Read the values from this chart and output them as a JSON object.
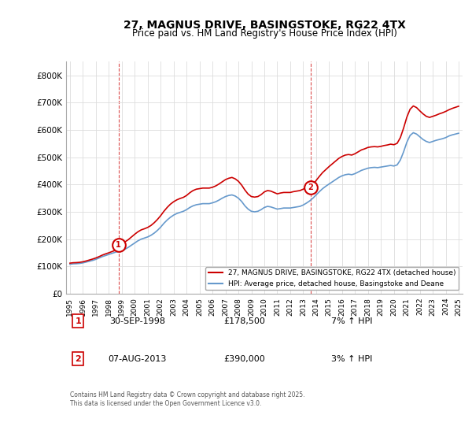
{
  "title": "27, MAGNUS DRIVE, BASINGSTOKE, RG22 4TX",
  "subtitle": "Price paid vs. HM Land Registry's House Price Index (HPI)",
  "legend_line1": "27, MAGNUS DRIVE, BASINGSTOKE, RG22 4TX (detached house)",
  "legend_line2": "HPI: Average price, detached house, Basingstoke and Deane",
  "footnote": "Contains HM Land Registry data © Crown copyright and database right 2025.\nThis data is licensed under the Open Government Licence v3.0.",
  "sale1_date": "30-SEP-1998",
  "sale1_price": "£178,500",
  "sale1_hpi": "7% ↑ HPI",
  "sale2_date": "07-AUG-2013",
  "sale2_price": "£390,000",
  "sale2_hpi": "3% ↑ HPI",
  "hpi_color": "#6699cc",
  "property_color": "#cc0000",
  "sale_marker_color": "#cc0000",
  "vline_color": "#cc0000",
  "background_color": "#ffffff",
  "grid_color": "#dddddd",
  "ylim": [
    0,
    850000
  ],
  "yticks": [
    0,
    100000,
    200000,
    300000,
    400000,
    500000,
    600000,
    700000,
    800000
  ],
  "ytick_labels": [
    "£0",
    "£100K",
    "£200K",
    "£300K",
    "£400K",
    "£500K",
    "£600K",
    "£700K",
    "£800K"
  ],
  "xmin_year": 1995,
  "xmax_year": 2025,
  "xticks": [
    1995,
    1996,
    1997,
    1998,
    1999,
    2000,
    2001,
    2002,
    2003,
    2004,
    2005,
    2006,
    2007,
    2008,
    2009,
    2010,
    2011,
    2012,
    2013,
    2014,
    2015,
    2016,
    2017,
    2018,
    2019,
    2020,
    2021,
    2022,
    2023,
    2024,
    2025
  ],
  "sale1_x": 1998.75,
  "sale1_y": 178500,
  "sale2_x": 2013.58,
  "sale2_y": 390000,
  "hpi_years": [
    1995.0,
    1995.25,
    1995.5,
    1995.75,
    1996.0,
    1996.25,
    1996.5,
    1996.75,
    1997.0,
    1997.25,
    1997.5,
    1997.75,
    1998.0,
    1998.25,
    1998.5,
    1998.75,
    1999.0,
    1999.25,
    1999.5,
    1999.75,
    2000.0,
    2000.25,
    2000.5,
    2000.75,
    2001.0,
    2001.25,
    2001.5,
    2001.75,
    2002.0,
    2002.25,
    2002.5,
    2002.75,
    2003.0,
    2003.25,
    2003.5,
    2003.75,
    2004.0,
    2004.25,
    2004.5,
    2004.75,
    2005.0,
    2005.25,
    2005.5,
    2005.75,
    2006.0,
    2006.25,
    2006.5,
    2006.75,
    2007.0,
    2007.25,
    2007.5,
    2007.75,
    2008.0,
    2008.25,
    2008.5,
    2008.75,
    2009.0,
    2009.25,
    2009.5,
    2009.75,
    2010.0,
    2010.25,
    2010.5,
    2010.75,
    2011.0,
    2011.25,
    2011.5,
    2011.75,
    2012.0,
    2012.25,
    2012.5,
    2012.75,
    2013.0,
    2013.25,
    2013.5,
    2013.75,
    2014.0,
    2014.25,
    2014.5,
    2014.75,
    2015.0,
    2015.25,
    2015.5,
    2015.75,
    2016.0,
    2016.25,
    2016.5,
    2016.75,
    2017.0,
    2017.25,
    2017.5,
    2017.75,
    2018.0,
    2018.25,
    2018.5,
    2018.75,
    2019.0,
    2019.25,
    2019.5,
    2019.75,
    2020.0,
    2020.25,
    2020.5,
    2020.75,
    2021.0,
    2021.25,
    2021.5,
    2021.75,
    2022.0,
    2022.25,
    2022.5,
    2022.75,
    2023.0,
    2023.25,
    2023.5,
    2023.75,
    2024.0,
    2024.25,
    2024.5,
    2024.75,
    2025.0
  ],
  "hpi_values": [
    108000,
    109500,
    110000,
    111000,
    113000,
    116000,
    119000,
    122000,
    126000,
    131000,
    136000,
    140000,
    144000,
    148000,
    152000,
    155000,
    158000,
    163000,
    170000,
    178000,
    186000,
    194000,
    200000,
    204000,
    208000,
    214000,
    222000,
    232000,
    244000,
    258000,
    270000,
    280000,
    288000,
    294000,
    298000,
    302000,
    308000,
    316000,
    322000,
    326000,
    328000,
    330000,
    330000,
    330000,
    333000,
    337000,
    343000,
    350000,
    356000,
    360000,
    362000,
    358000,
    350000,
    338000,
    322000,
    310000,
    302000,
    300000,
    302000,
    308000,
    316000,
    320000,
    318000,
    314000,
    310000,
    312000,
    314000,
    314000,
    314000,
    316000,
    318000,
    320000,
    325000,
    332000,
    340000,
    350000,
    362000,
    374000,
    385000,
    394000,
    402000,
    410000,
    418000,
    426000,
    432000,
    436000,
    438000,
    436000,
    440000,
    446000,
    452000,
    456000,
    460000,
    462000,
    463000,
    462000,
    464000,
    466000,
    468000,
    470000,
    468000,
    472000,
    490000,
    520000,
    555000,
    580000,
    590000,
    585000,
    575000,
    565000,
    558000,
    554000,
    558000,
    562000,
    565000,
    568000,
    572000,
    578000,
    582000,
    585000,
    588000
  ],
  "property_years": [
    1995.0,
    1995.25,
    1995.5,
    1995.75,
    1996.0,
    1996.25,
    1996.5,
    1996.75,
    1997.0,
    1997.25,
    1997.5,
    1997.75,
    1998.0,
    1998.25,
    1998.5,
    1998.75,
    1999.0,
    1999.25,
    1999.5,
    1999.75,
    2000.0,
    2000.25,
    2000.5,
    2000.75,
    2001.0,
    2001.25,
    2001.5,
    2001.75,
    2002.0,
    2002.25,
    2002.5,
    2002.75,
    2003.0,
    2003.25,
    2003.5,
    2003.75,
    2004.0,
    2004.25,
    2004.5,
    2004.75,
    2005.0,
    2005.25,
    2005.5,
    2005.75,
    2006.0,
    2006.25,
    2006.5,
    2006.75,
    2007.0,
    2007.25,
    2007.5,
    2007.75,
    2008.0,
    2008.25,
    2008.5,
    2008.75,
    2009.0,
    2009.25,
    2009.5,
    2009.75,
    2010.0,
    2010.25,
    2010.5,
    2010.75,
    2011.0,
    2011.25,
    2011.5,
    2011.75,
    2012.0,
    2012.25,
    2012.5,
    2012.75,
    2013.0,
    2013.25,
    2013.5,
    2013.75,
    2014.0,
    2014.25,
    2014.5,
    2014.75,
    2015.0,
    2015.25,
    2015.5,
    2015.75,
    2016.0,
    2016.25,
    2016.5,
    2016.75,
    2017.0,
    2017.25,
    2017.5,
    2017.75,
    2018.0,
    2018.25,
    2018.5,
    2018.75,
    2019.0,
    2019.25,
    2019.5,
    2019.75,
    2020.0,
    2020.25,
    2020.5,
    2020.75,
    2021.0,
    2021.25,
    2021.5,
    2021.75,
    2022.0,
    2022.25,
    2022.5,
    2022.75,
    2023.0,
    2023.25,
    2023.5,
    2023.75,
    2024.0,
    2024.25,
    2024.5,
    2024.75,
    2025.0
  ],
  "property_values": [
    112000,
    113500,
    114000,
    115000,
    117000,
    120000,
    123500,
    127000,
    131000,
    136000,
    141500,
    146000,
    150000,
    154500,
    159000,
    178500,
    183000,
    190000,
    198000,
    208000,
    218000,
    227000,
    234000,
    238000,
    243000,
    250000,
    260000,
    272000,
    286000,
    302000,
    316000,
    328000,
    337000,
    344000,
    349000,
    353000,
    360000,
    370000,
    378000,
    383000,
    385000,
    387000,
    387000,
    387000,
    390000,
    395000,
    402000,
    410000,
    418000,
    423000,
    426000,
    421000,
    412000,
    398000,
    380000,
    365000,
    356000,
    354000,
    356000,
    363000,
    373000,
    378000,
    376000,
    371000,
    366000,
    369000,
    371000,
    371000,
    371000,
    374000,
    376000,
    378000,
    383000,
    390000,
    390000,
    400000,
    415000,
    430000,
    444000,
    455000,
    466000,
    476000,
    486000,
    496000,
    503000,
    508000,
    510000,
    508000,
    513000,
    520000,
    527000,
    531000,
    536000,
    538000,
    539000,
    538000,
    540000,
    543000,
    545000,
    548000,
    546000,
    551000,
    572000,
    607000,
    647000,
    676000,
    688000,
    682000,
    670000,
    659000,
    650000,
    646000,
    650000,
    654000,
    659000,
    663000,
    668000,
    674000,
    679000,
    683000,
    687000
  ]
}
